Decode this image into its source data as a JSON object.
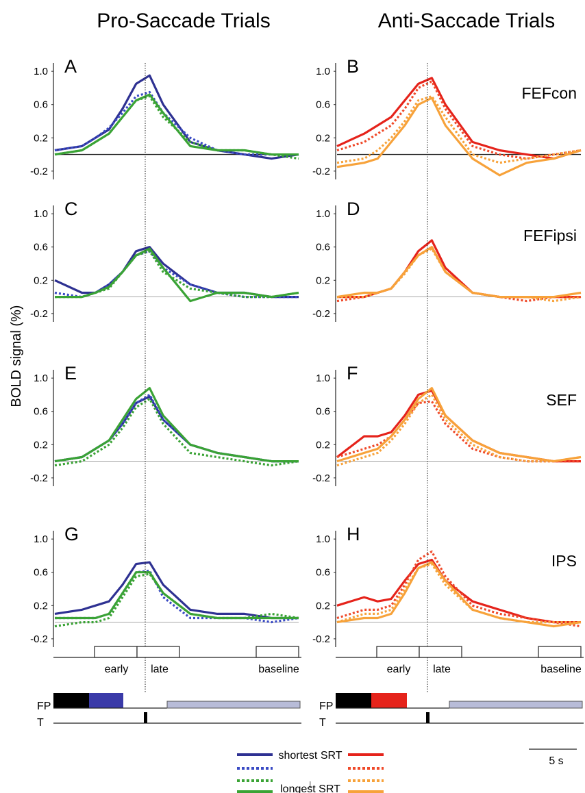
{
  "titles": {
    "pro": "Pro-Saccade Trials",
    "anti": "Anti-Saccade Trials"
  },
  "ylabel": "BOLD signal (%)",
  "yticks": [
    "1.0",
    "0.6",
    "0.2",
    "-0.2"
  ],
  "colors": {
    "shortest_pro": "#2e3192",
    "dotted_blue": "#3a4bc4",
    "dotted_green": "#3aa335",
    "longest_pro": "#3aa335",
    "shortest_anti": "#e5231b",
    "dotted_red": "#ef4a2a",
    "dotted_orange": "#f7a23a",
    "longest_anti": "#f7a23a",
    "fp_black": "#000000",
    "fp_blue": "#3a3aa8",
    "fp_red": "#e5231b",
    "fp_gray": "#b8bcd8"
  },
  "windows": {
    "early": "early",
    "late": "late",
    "baseline": "baseline"
  },
  "timeline": {
    "fp": "FP",
    "t": "T",
    "scale": "5 s"
  },
  "legend": {
    "shortest": "shortest SRT",
    "longest": "longest SRT",
    "arrow": "↓"
  },
  "chart_data": [
    {
      "panel": "A",
      "type": "line",
      "ylim": [
        -0.3,
        1.1
      ],
      "x": [
        -8,
        -4,
        -2,
        0,
        2,
        4,
        6,
        8,
        12,
        16,
        20,
        24,
        28
      ],
      "series": [
        {
          "values": [
            0.05,
            0.1,
            0.2,
            0.3,
            0.55,
            0.85,
            0.95,
            0.6,
            0.15,
            0.05,
            0.0,
            -0.05,
            0.0
          ]
        },
        {
          "values": [
            0.05,
            0.1,
            0.2,
            0.32,
            0.5,
            0.7,
            0.75,
            0.5,
            0.2,
            0.05,
            0.0,
            0.0,
            0.0
          ]
        },
        {
          "values": [
            0.0,
            0.05,
            0.15,
            0.25,
            0.45,
            0.65,
            0.7,
            0.45,
            0.15,
            0.05,
            0.05,
            0.0,
            -0.05
          ]
        },
        {
          "values": [
            0.0,
            0.05,
            0.15,
            0.25,
            0.45,
            0.65,
            0.72,
            0.5,
            0.1,
            0.05,
            0.05,
            0.0,
            0.0
          ]
        }
      ]
    },
    {
      "panel": "B",
      "label": "FEFcon",
      "type": "line",
      "ylim": [
        -0.3,
        1.1
      ],
      "x": [
        -8,
        -4,
        -2,
        0,
        2,
        4,
        6,
        8,
        12,
        16,
        20,
        24,
        28
      ],
      "series": [
        {
          "values": [
            0.1,
            0.25,
            0.35,
            0.45,
            0.65,
            0.85,
            0.92,
            0.6,
            0.15,
            0.05,
            0.0,
            -0.05,
            0.05
          ]
        },
        {
          "values": [
            0.05,
            0.15,
            0.25,
            0.35,
            0.55,
            0.8,
            0.88,
            0.55,
            0.1,
            0.0,
            -0.05,
            0.0,
            0.05
          ]
        },
        {
          "values": [
            -0.1,
            -0.05,
            0.05,
            0.2,
            0.4,
            0.65,
            0.7,
            0.45,
            0.0,
            -0.1,
            -0.05,
            0.0,
            0.05
          ]
        },
        {
          "values": [
            -0.15,
            -0.1,
            -0.05,
            0.15,
            0.35,
            0.6,
            0.68,
            0.35,
            -0.05,
            -0.25,
            -0.1,
            -0.05,
            0.05
          ]
        }
      ]
    },
    {
      "panel": "C",
      "type": "line",
      "ylim": [
        -0.3,
        1.1
      ],
      "x": [
        -8,
        -4,
        -2,
        0,
        2,
        4,
        6,
        8,
        12,
        16,
        20,
        24,
        28
      ],
      "series": [
        {
          "values": [
            0.2,
            0.05,
            0.05,
            0.15,
            0.3,
            0.55,
            0.6,
            0.4,
            0.15,
            0.05,
            0.05,
            0.0,
            0.0
          ]
        },
        {
          "values": [
            0.05,
            0.0,
            0.05,
            0.15,
            0.3,
            0.5,
            0.55,
            0.35,
            0.15,
            0.05,
            0.0,
            0.0,
            0.0
          ]
        },
        {
          "values": [
            0.0,
            0.0,
            0.05,
            0.1,
            0.3,
            0.5,
            0.55,
            0.3,
            0.1,
            0.05,
            0.0,
            0.0,
            0.05
          ]
        },
        {
          "values": [
            0.0,
            0.0,
            0.05,
            0.12,
            0.3,
            0.5,
            0.58,
            0.35,
            -0.05,
            0.05,
            0.05,
            0.0,
            0.05
          ]
        }
      ]
    },
    {
      "panel": "D",
      "label": "FEFipsi",
      "type": "line",
      "ylim": [
        -0.3,
        1.1
      ],
      "x": [
        -8,
        -4,
        -2,
        0,
        2,
        4,
        6,
        8,
        12,
        16,
        20,
        24,
        28
      ],
      "series": [
        {
          "values": [
            0.0,
            0.0,
            0.05,
            0.1,
            0.3,
            0.55,
            0.68,
            0.35,
            0.05,
            0.0,
            0.0,
            0.0,
            0.0
          ]
        },
        {
          "values": [
            -0.05,
            0.0,
            0.05,
            0.1,
            0.3,
            0.5,
            0.6,
            0.3,
            0.05,
            0.0,
            -0.05,
            0.0,
            0.0
          ]
        },
        {
          "values": [
            0.0,
            0.0,
            0.05,
            0.1,
            0.28,
            0.5,
            0.58,
            0.3,
            0.05,
            0.0,
            0.0,
            -0.05,
            0.0
          ]
        },
        {
          "values": [
            0.0,
            0.05,
            0.05,
            0.1,
            0.3,
            0.5,
            0.6,
            0.3,
            0.05,
            0.0,
            0.0,
            0.0,
            0.05
          ]
        }
      ]
    },
    {
      "panel": "E",
      "type": "line",
      "ylim": [
        -0.3,
        1.1
      ],
      "x": [
        -8,
        -4,
        -2,
        0,
        2,
        4,
        6,
        8,
        12,
        16,
        20,
        24,
        28
      ],
      "series": [
        {
          "values": [
            0.0,
            0.05,
            0.15,
            0.25,
            0.45,
            0.7,
            0.78,
            0.5,
            0.2,
            0.1,
            0.05,
            0.0,
            0.0
          ]
        },
        {
          "values": [
            0.0,
            0.05,
            0.15,
            0.25,
            0.45,
            0.7,
            0.8,
            0.5,
            0.2,
            0.1,
            0.05,
            0.0,
            0.0
          ]
        },
        {
          "values": [
            -0.05,
            0.0,
            0.1,
            0.2,
            0.4,
            0.65,
            0.75,
            0.45,
            0.1,
            0.05,
            0.0,
            -0.05,
            0.0
          ]
        },
        {
          "values": [
            0.0,
            0.05,
            0.15,
            0.25,
            0.5,
            0.75,
            0.88,
            0.55,
            0.2,
            0.1,
            0.05,
            0.0,
            0.0
          ]
        }
      ]
    },
    {
      "panel": "F",
      "label": "SEF",
      "type": "line",
      "ylim": [
        -0.3,
        1.1
      ],
      "x": [
        -8,
        -4,
        -2,
        0,
        2,
        4,
        6,
        8,
        12,
        16,
        20,
        24,
        28
      ],
      "series": [
        {
          "values": [
            0.05,
            0.3,
            0.3,
            0.35,
            0.55,
            0.8,
            0.85,
            0.55,
            0.25,
            0.1,
            0.05,
            0.0,
            0.0
          ]
        },
        {
          "values": [
            0.05,
            0.15,
            0.2,
            0.3,
            0.5,
            0.7,
            0.72,
            0.45,
            0.15,
            0.05,
            0.0,
            0.0,
            0.0
          ]
        },
        {
          "values": [
            -0.05,
            0.05,
            0.1,
            0.25,
            0.45,
            0.7,
            0.8,
            0.5,
            0.2,
            0.05,
            0.0,
            0.0,
            0.05
          ]
        },
        {
          "values": [
            0.0,
            0.1,
            0.15,
            0.3,
            0.5,
            0.75,
            0.88,
            0.55,
            0.25,
            0.1,
            0.05,
            0.0,
            0.05
          ]
        }
      ]
    },
    {
      "panel": "G",
      "type": "line",
      "ylim": [
        -0.3,
        1.1
      ],
      "x": [
        -8,
        -4,
        -2,
        0,
        2,
        4,
        6,
        8,
        12,
        16,
        20,
        24,
        28
      ],
      "series": [
        {
          "values": [
            0.1,
            0.15,
            0.2,
            0.25,
            0.45,
            0.7,
            0.72,
            0.45,
            0.15,
            0.1,
            0.1,
            0.05,
            0.05
          ]
        },
        {
          "values": [
            0.05,
            0.05,
            0.05,
            0.1,
            0.35,
            0.6,
            0.62,
            0.3,
            0.05,
            0.05,
            0.05,
            0.0,
            0.05
          ]
        },
        {
          "values": [
            -0.05,
            0.0,
            0.0,
            0.05,
            0.3,
            0.55,
            0.58,
            0.35,
            0.1,
            0.05,
            0.05,
            0.1,
            0.05
          ]
        },
        {
          "values": [
            0.05,
            0.05,
            0.05,
            0.1,
            0.35,
            0.6,
            0.6,
            0.35,
            0.1,
            0.05,
            0.05,
            0.05,
            0.05
          ]
        }
      ]
    },
    {
      "panel": "H",
      "label": "IPS",
      "type": "line",
      "ylim": [
        -0.3,
        1.1
      ],
      "x": [
        -8,
        -4,
        -2,
        0,
        2,
        4,
        6,
        8,
        12,
        16,
        20,
        24,
        28
      ],
      "series": [
        {
          "values": [
            0.2,
            0.3,
            0.25,
            0.28,
            0.5,
            0.7,
            0.75,
            0.5,
            0.25,
            0.15,
            0.05,
            0.0,
            0.0
          ]
        },
        {
          "values": [
            0.05,
            0.15,
            0.15,
            0.2,
            0.45,
            0.75,
            0.85,
            0.55,
            0.2,
            0.1,
            0.05,
            0.0,
            -0.05
          ]
        },
        {
          "values": [
            0.0,
            0.1,
            0.1,
            0.15,
            0.4,
            0.65,
            0.7,
            0.45,
            0.15,
            0.05,
            0.0,
            0.0,
            0.0
          ]
        },
        {
          "values": [
            0.0,
            0.05,
            0.05,
            0.1,
            0.35,
            0.65,
            0.72,
            0.5,
            0.15,
            0.05,
            0.0,
            -0.05,
            0.0
          ]
        }
      ]
    }
  ]
}
